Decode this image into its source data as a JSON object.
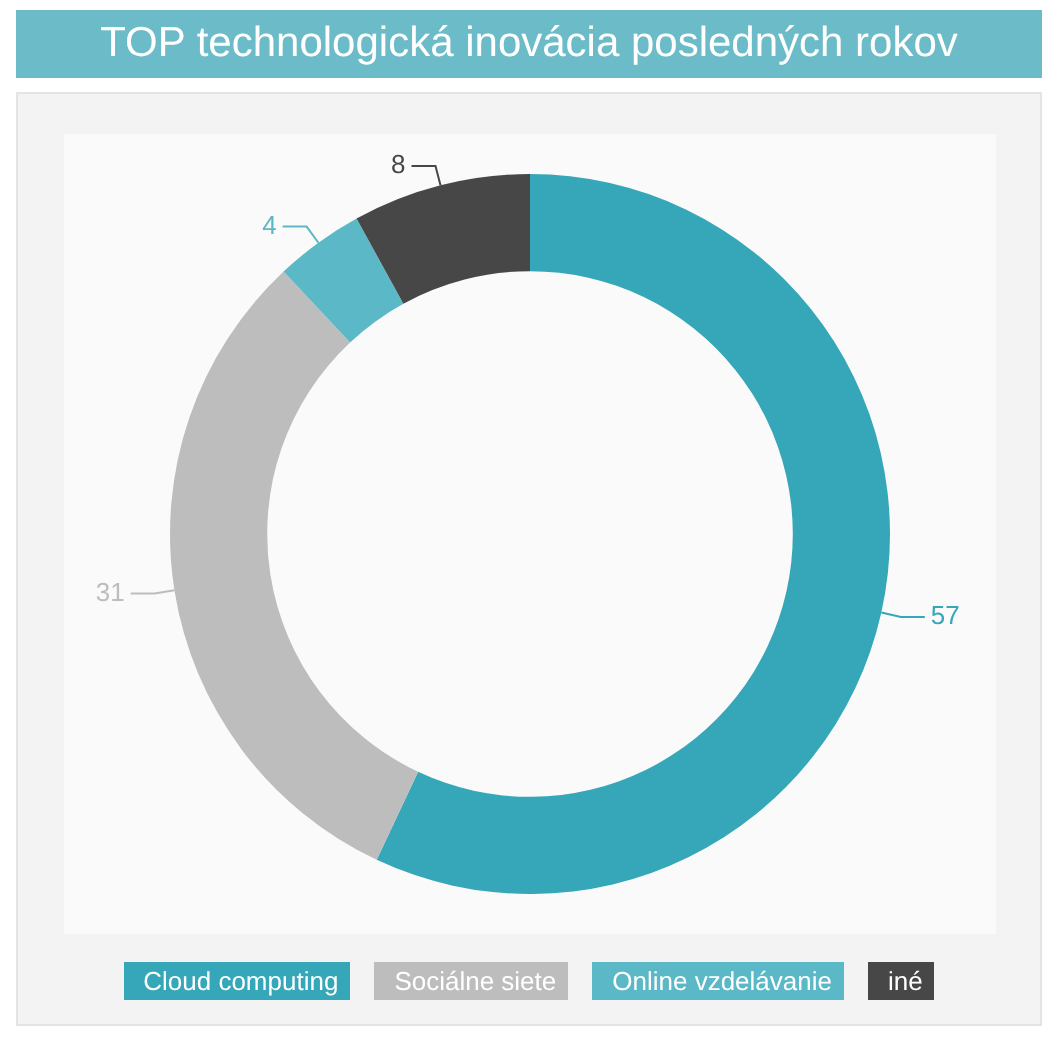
{
  "chart_data": {
    "type": "donut",
    "title": "TOP technologická inovácia posledných rokov",
    "categories": [
      "Cloud computing",
      "Sociálne siete",
      "Online vzdelávanie",
      "iné"
    ],
    "values": [
      57,
      31,
      4,
      8
    ],
    "colors": [
      "#35a7b8",
      "#bdbdbd",
      "#5bb8c6",
      "#474747"
    ],
    "data_labels": true,
    "legend": "bottom"
  }
}
